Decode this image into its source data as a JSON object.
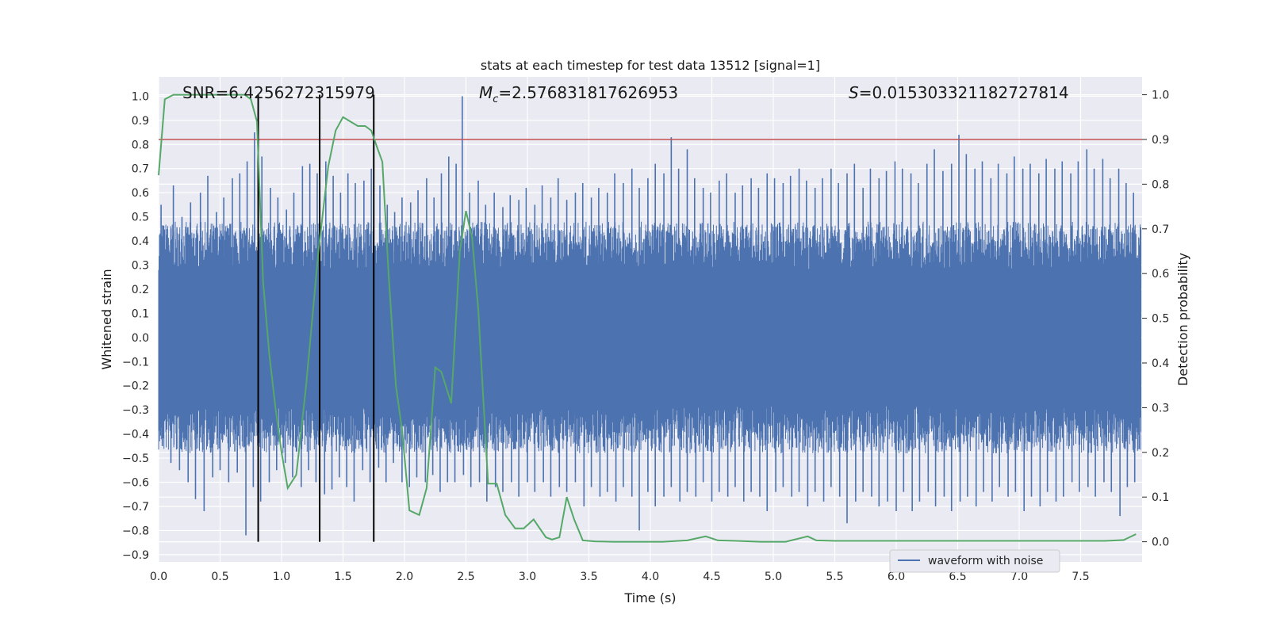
{
  "chart_data": {
    "type": "line",
    "title": "stats at each timestep for test data 13512 [signal=1]",
    "xlabel": "Time (s)",
    "ylabel": "Whitened strain",
    "y2label": "Detection probability",
    "xlim": [
      0,
      8
    ],
    "ylim": [
      -0.93,
      1.08
    ],
    "y2lim": [
      -0.045,
      1.04
    ],
    "xticks": [
      0,
      0.5,
      1,
      1.5,
      2,
      2.5,
      3,
      3.5,
      4,
      4.5,
      5,
      5.5,
      6,
      6.5,
      7,
      7.5
    ],
    "xtick_labels": [
      "0.0",
      "0.5",
      "1.0",
      "1.5",
      "2.0",
      "2.5",
      "3.0",
      "3.5",
      "4.0",
      "4.5",
      "5.0",
      "5.5",
      "6.0",
      "6.5",
      "7.0",
      "7.5"
    ],
    "yticks": [
      -0.9,
      -0.8,
      -0.7,
      -0.6,
      -0.5,
      -0.4,
      -0.3,
      -0.2,
      -0.1,
      0,
      0.1,
      0.2,
      0.3,
      0.4,
      0.5,
      0.6,
      0.7,
      0.8,
      0.9,
      1.0
    ],
    "ytick_labels": [
      "−0.9",
      "−0.8",
      "−0.7",
      "−0.6",
      "−0.5",
      "−0.4",
      "−0.3",
      "−0.2",
      "−0.1",
      "0.0",
      "0.1",
      "0.2",
      "0.3",
      "0.4",
      "0.5",
      "0.6",
      "0.7",
      "0.8",
      "0.9",
      "1.0"
    ],
    "y2ticks": [
      0,
      0.1,
      0.2,
      0.3,
      0.4,
      0.5,
      0.6,
      0.7,
      0.8,
      0.9,
      1.0
    ],
    "y2tick_labels": [
      "0.0",
      "0.1",
      "0.2",
      "0.3",
      "0.4",
      "0.5",
      "0.6",
      "0.7",
      "0.8",
      "0.9",
      "1.0"
    ],
    "grid": true,
    "legend": {
      "position": "bottom-right",
      "entries": [
        "waveform with noise"
      ]
    },
    "annotations": {
      "snr": "SNR=6.4256272315979",
      "mc_symbol": "M",
      "mc_sub": "c",
      "mc_value": "=2.576831817626953",
      "s_symbol": "S",
      "s_value": "=0.015303321182727814"
    },
    "threshold": {
      "value": 0.9,
      "axis": "right",
      "color": "#c44e52"
    },
    "vlines": [
      0.81,
      1.31,
      1.75
    ],
    "waveform": {
      "name": "waveform with noise",
      "color": "#4c72b0",
      "band_lower": -0.28,
      "band_upper": 0.28,
      "peaks_up": [
        [
          0.02,
          0.55
        ],
        [
          0.07,
          0.45
        ],
        [
          0.12,
          0.63
        ],
        [
          0.19,
          0.5
        ],
        [
          0.26,
          0.56
        ],
        [
          0.34,
          0.6
        ],
        [
          0.4,
          0.67
        ],
        [
          0.47,
          0.52
        ],
        [
          0.53,
          0.58
        ],
        [
          0.6,
          0.66
        ],
        [
          0.66,
          0.68
        ],
        [
          0.72,
          0.73
        ],
        [
          0.78,
          0.85
        ],
        [
          0.84,
          0.75
        ],
        [
          0.91,
          0.62
        ],
        [
          0.97,
          0.58
        ],
        [
          1.04,
          0.53
        ],
        [
          1.1,
          0.6
        ],
        [
          1.17,
          0.71
        ],
        [
          1.23,
          0.72
        ],
        [
          1.29,
          0.68
        ],
        [
          1.36,
          0.73
        ],
        [
          1.42,
          0.67
        ],
        [
          1.48,
          0.6
        ],
        [
          1.54,
          0.68
        ],
        [
          1.6,
          0.64
        ],
        [
          1.67,
          0.65
        ],
        [
          1.73,
          0.7
        ],
        [
          1.8,
          0.63
        ],
        [
          1.86,
          0.55
        ],
        [
          1.92,
          0.52
        ],
        [
          1.98,
          0.58
        ],
        [
          2.05,
          0.56
        ],
        [
          2.11,
          0.61
        ],
        [
          2.18,
          0.66
        ],
        [
          2.24,
          0.58
        ],
        [
          2.3,
          0.68
        ],
        [
          2.36,
          0.75
        ],
        [
          2.42,
          0.72
        ],
        [
          2.47,
          1.0
        ],
        [
          2.53,
          0.6
        ],
        [
          2.6,
          0.65
        ],
        [
          2.66,
          0.55
        ],
        [
          2.73,
          0.6
        ],
        [
          2.8,
          0.54
        ],
        [
          2.86,
          0.59
        ],
        [
          2.93,
          0.57
        ],
        [
          2.99,
          0.62
        ],
        [
          3.06,
          0.55
        ],
        [
          3.12,
          0.63
        ],
        [
          3.19,
          0.58
        ],
        [
          3.25,
          0.66
        ],
        [
          3.32,
          0.57
        ],
        [
          3.39,
          0.6
        ],
        [
          3.45,
          0.64
        ],
        [
          3.52,
          0.58
        ],
        [
          3.58,
          0.62
        ],
        [
          3.65,
          0.6
        ],
        [
          3.71,
          0.68
        ],
        [
          3.78,
          0.64
        ],
        [
          3.85,
          0.7
        ],
        [
          3.91,
          0.62
        ],
        [
          3.98,
          0.66
        ],
        [
          4.04,
          0.72
        ],
        [
          4.11,
          0.68
        ],
        [
          4.17,
          0.83
        ],
        [
          4.23,
          0.7
        ],
        [
          4.3,
          0.78
        ],
        [
          4.36,
          0.66
        ],
        [
          4.43,
          0.62
        ],
        [
          4.49,
          0.6
        ],
        [
          4.56,
          0.65
        ],
        [
          4.62,
          0.68
        ],
        [
          4.69,
          0.6
        ],
        [
          4.75,
          0.63
        ],
        [
          4.82,
          0.66
        ],
        [
          4.88,
          0.62
        ],
        [
          4.95,
          0.68
        ],
        [
          5.01,
          0.66
        ],
        [
          5.08,
          0.64
        ],
        [
          5.14,
          0.67
        ],
        [
          5.21,
          0.7
        ],
        [
          5.27,
          0.65
        ],
        [
          5.34,
          0.62
        ],
        [
          5.4,
          0.66
        ],
        [
          5.47,
          0.7
        ],
        [
          5.53,
          0.64
        ],
        [
          5.6,
          0.68
        ],
        [
          5.66,
          0.72
        ],
        [
          5.73,
          0.62
        ],
        [
          5.79,
          0.7
        ],
        [
          5.86,
          0.66
        ],
        [
          5.92,
          0.69
        ],
        [
          5.99,
          0.73
        ],
        [
          6.05,
          0.7
        ],
        [
          6.12,
          0.68
        ],
        [
          6.18,
          0.64
        ],
        [
          6.25,
          0.72
        ],
        [
          6.31,
          0.78
        ],
        [
          6.38,
          0.69
        ],
        [
          6.45,
          0.72
        ],
        [
          6.51,
          0.84
        ],
        [
          6.57,
          0.76
        ],
        [
          6.64,
          0.7
        ],
        [
          6.7,
          0.73
        ],
        [
          6.77,
          0.66
        ],
        [
          6.83,
          0.72
        ],
        [
          6.9,
          0.68
        ],
        [
          6.96,
          0.75
        ],
        [
          7.03,
          0.7
        ],
        [
          7.09,
          0.72
        ],
        [
          7.16,
          0.68
        ],
        [
          7.22,
          0.74
        ],
        [
          7.29,
          0.7
        ],
        [
          7.35,
          0.73
        ],
        [
          7.42,
          0.68
        ],
        [
          7.48,
          0.73
        ],
        [
          7.55,
          0.78
        ],
        [
          7.61,
          0.7
        ],
        [
          7.68,
          0.74
        ],
        [
          7.74,
          0.66
        ],
        [
          7.81,
          0.7
        ],
        [
          7.87,
          0.64
        ],
        [
          7.93,
          0.6
        ]
      ],
      "peaks_down": [
        [
          0.03,
          -0.45
        ],
        [
          0.1,
          -0.52
        ],
        [
          0.17,
          -0.55
        ],
        [
          0.24,
          -0.6
        ],
        [
          0.3,
          -0.67
        ],
        [
          0.37,
          -0.72
        ],
        [
          0.44,
          -0.58
        ],
        [
          0.5,
          -0.55
        ],
        [
          0.57,
          -0.6
        ],
        [
          0.64,
          -0.56
        ],
        [
          0.71,
          -0.82
        ],
        [
          0.77,
          -0.62
        ],
        [
          0.83,
          -0.68
        ],
        [
          0.9,
          -0.6
        ],
        [
          0.96,
          -0.55
        ],
        [
          1.03,
          -0.52
        ],
        [
          1.09,
          -0.58
        ],
        [
          1.16,
          -0.62
        ],
        [
          1.22,
          -0.55
        ],
        [
          1.28,
          -0.6
        ],
        [
          1.35,
          -0.65
        ],
        [
          1.41,
          -0.63
        ],
        [
          1.47,
          -0.58
        ],
        [
          1.53,
          -0.62
        ],
        [
          1.59,
          -0.68
        ],
        [
          1.66,
          -0.55
        ],
        [
          1.72,
          -0.6
        ],
        [
          1.79,
          -0.54
        ],
        [
          1.85,
          -0.6
        ],
        [
          1.91,
          -0.52
        ],
        [
          1.98,
          -0.6
        ],
        [
          2.04,
          -0.62
        ],
        [
          2.1,
          -0.58
        ],
        [
          2.17,
          -0.6
        ],
        [
          2.23,
          -0.57
        ],
        [
          2.29,
          -0.64
        ],
        [
          2.35,
          -0.6
        ],
        [
          2.41,
          -0.6
        ],
        [
          2.48,
          -0.57
        ],
        [
          2.54,
          -0.62
        ],
        [
          2.61,
          -0.6
        ],
        [
          2.67,
          -0.68
        ],
        [
          2.74,
          -0.62
        ],
        [
          2.8,
          -0.64
        ],
        [
          2.87,
          -0.6
        ],
        [
          2.93,
          -0.66
        ],
        [
          3.0,
          -0.6
        ],
        [
          3.06,
          -0.64
        ],
        [
          3.13,
          -0.6
        ],
        [
          3.19,
          -0.66
        ],
        [
          3.26,
          -0.62
        ],
        [
          3.32,
          -0.64
        ],
        [
          3.39,
          -0.6
        ],
        [
          3.46,
          -0.7
        ],
        [
          3.52,
          -0.62
        ],
        [
          3.59,
          -0.66
        ],
        [
          3.65,
          -0.64
        ],
        [
          3.72,
          -0.68
        ],
        [
          3.78,
          -0.62
        ],
        [
          3.85,
          -0.66
        ],
        [
          3.91,
          -0.8
        ],
        [
          3.98,
          -0.64
        ],
        [
          4.04,
          -0.7
        ],
        [
          4.11,
          -0.66
        ],
        [
          4.17,
          -0.62
        ],
        [
          4.24,
          -0.68
        ],
        [
          4.3,
          -0.64
        ],
        [
          4.37,
          -0.66
        ],
        [
          4.43,
          -0.6
        ],
        [
          4.5,
          -0.68
        ],
        [
          4.56,
          -0.64
        ],
        [
          4.63,
          -0.66
        ],
        [
          4.69,
          -0.62
        ],
        [
          4.76,
          -0.68
        ],
        [
          4.82,
          -0.64
        ],
        [
          4.89,
          -0.66
        ],
        [
          4.95,
          -0.72
        ],
        [
          5.02,
          -0.64
        ],
        [
          5.08,
          -0.62
        ],
        [
          5.15,
          -0.66
        ],
        [
          5.21,
          -0.64
        ],
        [
          5.28,
          -0.7
        ],
        [
          5.34,
          -0.64
        ],
        [
          5.41,
          -0.68
        ],
        [
          5.47,
          -0.62
        ],
        [
          5.54,
          -0.66
        ],
        [
          5.6,
          -0.77
        ],
        [
          5.67,
          -0.68
        ],
        [
          5.73,
          -0.64
        ],
        [
          5.8,
          -0.66
        ],
        [
          5.86,
          -0.7
        ],
        [
          5.93,
          -0.68
        ],
        [
          6.0,
          -0.72
        ],
        [
          6.06,
          -0.64
        ],
        [
          6.13,
          -0.72
        ],
        [
          6.19,
          -0.68
        ],
        [
          6.26,
          -0.64
        ],
        [
          6.32,
          -0.7
        ],
        [
          6.39,
          -0.66
        ],
        [
          6.45,
          -0.72
        ],
        [
          6.52,
          -0.68
        ],
        [
          6.58,
          -0.66
        ],
        [
          6.65,
          -0.7
        ],
        [
          6.71,
          -0.64
        ],
        [
          6.78,
          -0.68
        ],
        [
          6.84,
          -0.62
        ],
        [
          6.91,
          -0.66
        ],
        [
          6.97,
          -0.64
        ],
        [
          7.04,
          -0.72
        ],
        [
          7.1,
          -0.66
        ],
        [
          7.17,
          -0.7
        ],
        [
          7.23,
          -0.64
        ],
        [
          7.3,
          -0.68
        ],
        [
          7.36,
          -0.66
        ],
        [
          7.43,
          -0.6
        ],
        [
          7.49,
          -0.64
        ],
        [
          7.56,
          -0.62
        ],
        [
          7.62,
          -0.66
        ],
        [
          7.69,
          -0.6
        ],
        [
          7.75,
          -0.64
        ],
        [
          7.82,
          -0.74
        ],
        [
          7.88,
          -0.62
        ],
        [
          7.94,
          -0.6
        ]
      ]
    },
    "detection_probability": {
      "color": "#55a868",
      "axis": "right",
      "x": [
        0.0,
        0.05,
        0.12,
        0.2,
        0.3,
        0.45,
        0.6,
        0.7,
        0.75,
        0.8,
        0.85,
        0.9,
        0.95,
        1.0,
        1.05,
        1.12,
        1.2,
        1.3,
        1.38,
        1.44,
        1.5,
        1.56,
        1.62,
        1.68,
        1.73,
        1.78,
        1.82,
        1.87,
        1.93,
        1.98,
        2.04,
        2.12,
        2.18,
        2.25,
        2.3,
        2.38,
        2.45,
        2.5,
        2.55,
        2.6,
        2.68,
        2.75,
        2.82,
        2.9,
        2.97,
        3.05,
        3.1,
        3.15,
        3.2,
        3.26,
        3.32,
        3.38,
        3.45,
        3.55,
        3.7,
        3.9,
        4.1,
        4.3,
        4.45,
        4.55,
        4.7,
        4.9,
        5.1,
        5.28,
        5.35,
        5.5,
        5.8,
        6.2,
        6.6,
        7.0,
        7.4,
        7.7,
        7.85,
        7.95
      ],
      "y": [
        0.82,
        0.99,
        1.0,
        1.0,
        1.0,
        1.0,
        1.0,
        1.0,
        0.99,
        0.94,
        0.58,
        0.42,
        0.3,
        0.2,
        0.12,
        0.15,
        0.35,
        0.65,
        0.84,
        0.92,
        0.95,
        0.94,
        0.93,
        0.93,
        0.92,
        0.88,
        0.85,
        0.6,
        0.35,
        0.25,
        0.07,
        0.06,
        0.12,
        0.39,
        0.38,
        0.31,
        0.65,
        0.74,
        0.68,
        0.52,
        0.13,
        0.13,
        0.06,
        0.03,
        0.03,
        0.05,
        0.03,
        0.01,
        0.005,
        0.01,
        0.1,
        0.05,
        0.003,
        0.001,
        0.0,
        0.0,
        0.0,
        0.003,
        0.012,
        0.003,
        0.002,
        0.0,
        0.0,
        0.012,
        0.003,
        0.002,
        0.002,
        0.002,
        0.002,
        0.002,
        0.002,
        0.002,
        0.004,
        0.017
      ]
    }
  }
}
